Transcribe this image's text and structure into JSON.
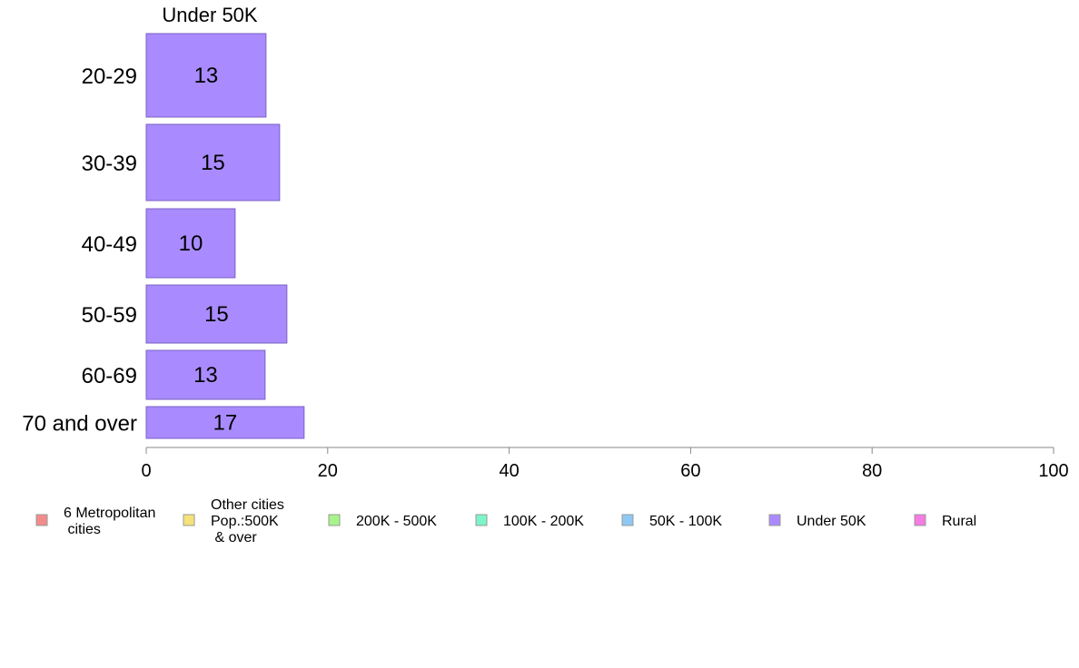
{
  "chart_data": {
    "type": "bar",
    "orientation": "horizontal",
    "panel_title": "Under 50K",
    "categories": [
      "20-29",
      "30-39",
      "40-49",
      "50-59",
      "60-69",
      "70 and over"
    ],
    "values": [
      13,
      15,
      10,
      15,
      13,
      17
    ],
    "data_labels": [
      "13",
      "15",
      "10",
      "15",
      "13",
      "17"
    ],
    "bar_lengths": [
      13.2,
      14.7,
      9.8,
      15.5,
      13.1,
      17.4
    ],
    "bar_color": "#a98bff",
    "bar_border_color": "#7a62c4",
    "xlim": [
      0,
      100
    ],
    "x_ticks": [
      0,
      20,
      40,
      60,
      80,
      100
    ],
    "x_tick_labels": [
      "0",
      "20",
      "40",
      "60",
      "80",
      "100"
    ],
    "xlabel": "",
    "ylabel": "",
    "grid": false,
    "legend_position": "bottom",
    "legend": [
      {
        "lines": [
          "6 Metropolitan",
          " cities"
        ],
        "color": "#f28b8b"
      },
      {
        "lines": [
          "Other cities",
          "Pop.:500K",
          " & over"
        ],
        "color": "#f5e27a"
      },
      {
        "lines": [
          "200K - 500K"
        ],
        "color": "#a6f58a"
      },
      {
        "lines": [
          "100K - 200K"
        ],
        "color": "#7df5c8"
      },
      {
        "lines": [
          "50K - 100K"
        ],
        "color": "#8ec9f5"
      },
      {
        "lines": [
          "Under 50K"
        ],
        "color": "#a98bff"
      },
      {
        "lines": [
          "Rural"
        ],
        "color": "#f57ce3"
      }
    ]
  }
}
